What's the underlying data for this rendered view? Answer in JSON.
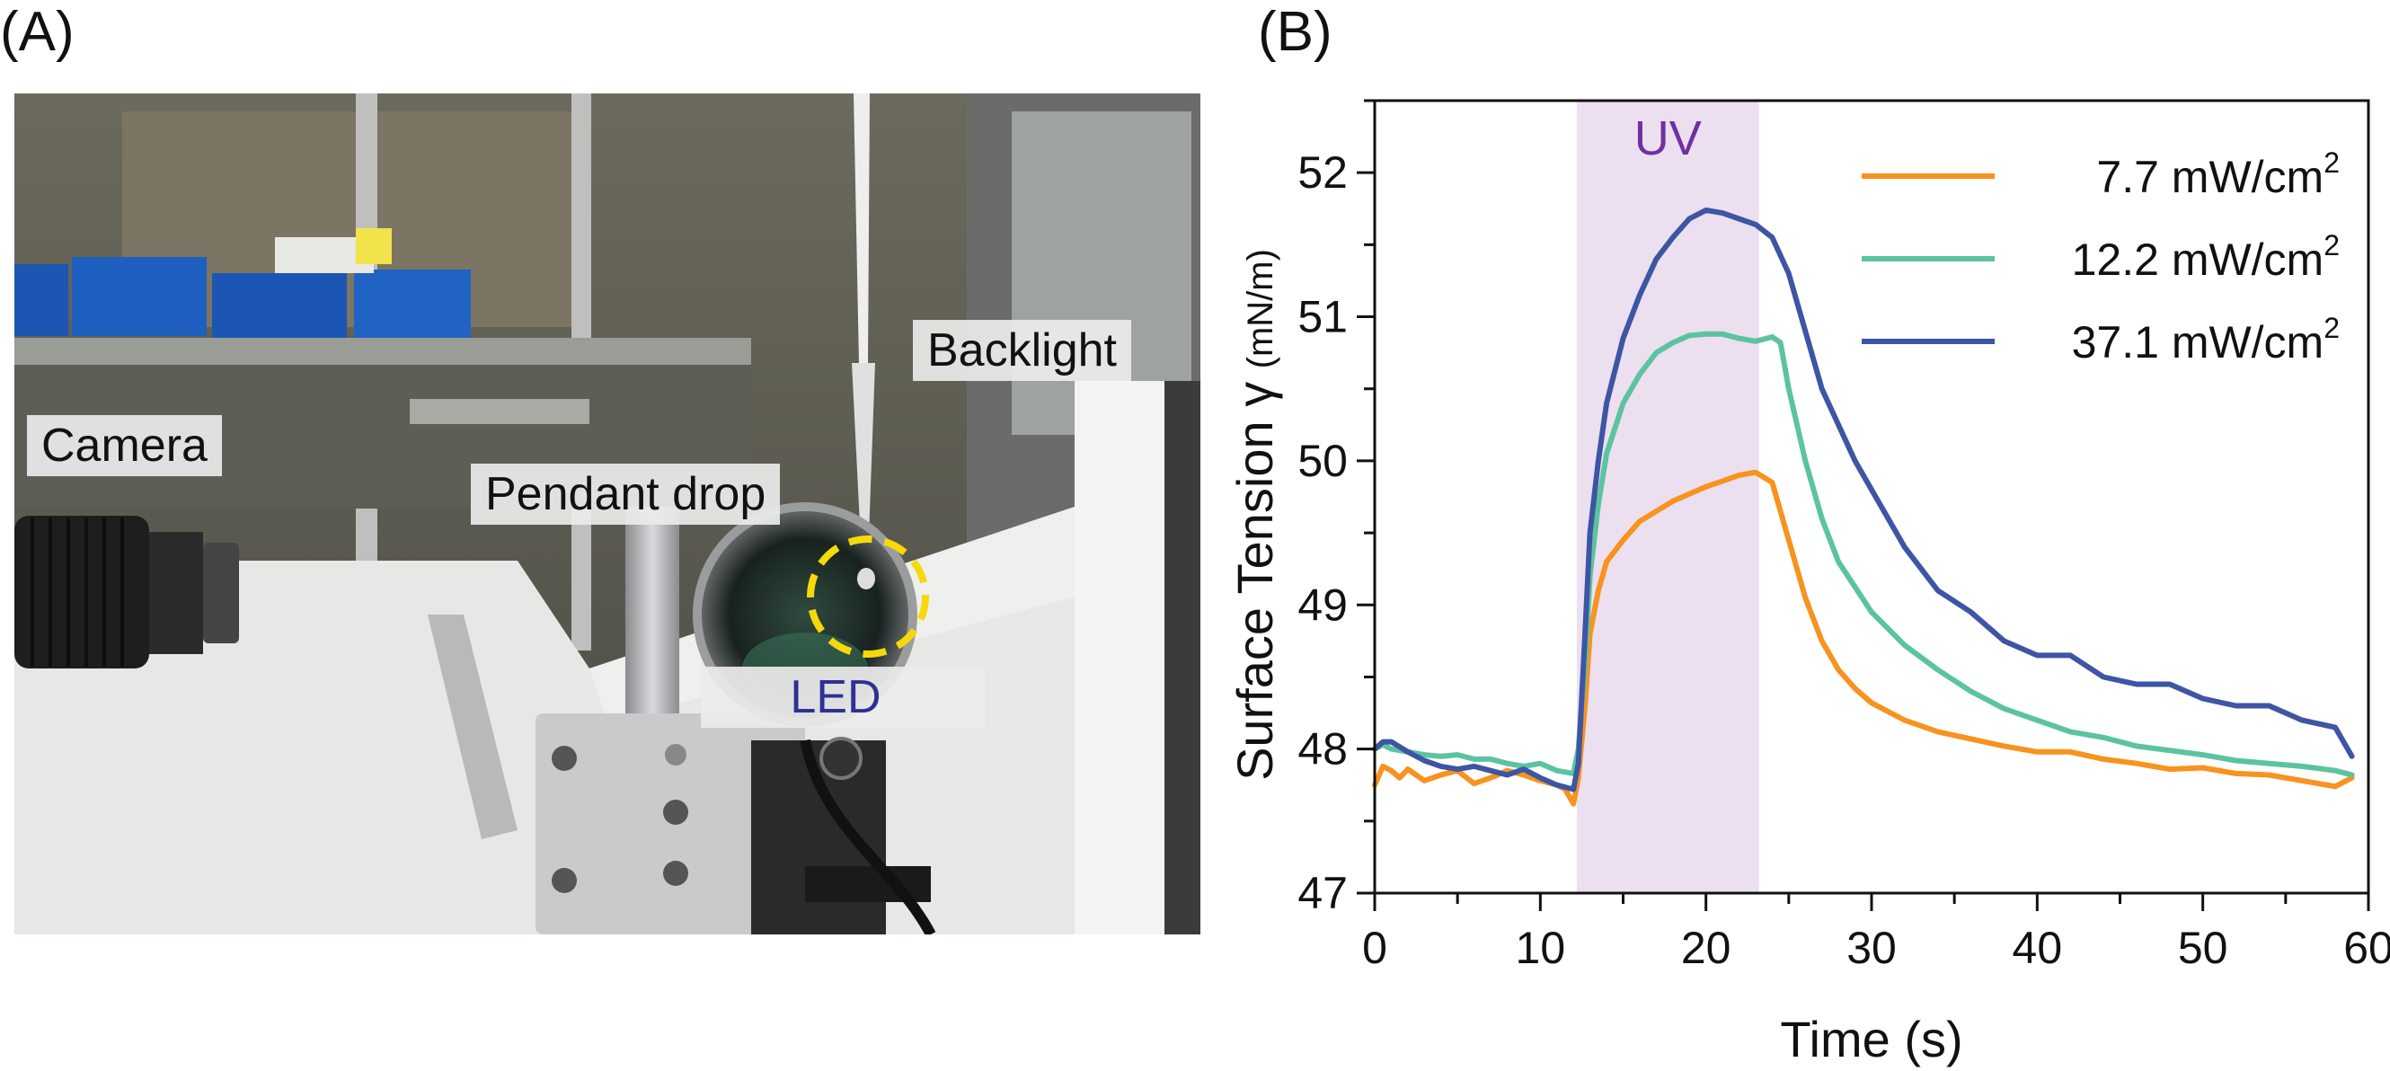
{
  "panels": {
    "a_label": "(A)",
    "b_label": "(B)"
  },
  "photo": {
    "labels": {
      "camera": "Camera",
      "pendant_drop": "Pendant drop",
      "backlight": "Backlight",
      "led": "LED"
    },
    "colors": {
      "led_text": "#2e3192",
      "drop_circle": "#f5d90a",
      "foam": "#e6e8e6",
      "shelf_bins": "#1c56b4"
    }
  },
  "chart_data": {
    "type": "line",
    "title": "",
    "xlabel": "Time (s)",
    "ylabel": "Surface Tension γ",
    "ylabel_unit": "(mN/m)",
    "xlim": [
      0,
      60
    ],
    "ylim": [
      47,
      52.5
    ],
    "xticks": [
      0,
      10,
      20,
      30,
      40,
      50,
      60
    ],
    "yticks": [
      47,
      48,
      49,
      50,
      51,
      52
    ],
    "x_minor_step": 5,
    "y_minor_step": 0.5,
    "grid": false,
    "legend_position": "top-right",
    "annotation": {
      "text": "UV",
      "x_start": 12.2,
      "x_end": 23.2,
      "color": "#7030a0",
      "shade": "#ecdff0"
    },
    "series": [
      {
        "name": "7.7 mW/cm",
        "superscript": "2",
        "color": "#f7931e",
        "x": [
          0,
          0.5,
          1,
          1.5,
          2,
          3,
          4,
          5,
          6,
          7,
          8,
          9,
          10,
          11,
          11.5,
          12,
          12.3,
          12.7,
          13,
          13.5,
          14,
          15,
          16,
          17,
          18,
          19,
          20,
          21,
          22,
          23,
          24,
          25,
          26,
          27,
          28,
          29,
          30,
          32,
          34,
          36,
          38,
          40,
          42,
          44,
          46,
          48,
          50,
          52,
          54,
          56,
          58,
          59
        ],
        "y": [
          47.75,
          47.88,
          47.85,
          47.8,
          47.86,
          47.78,
          47.82,
          47.85,
          47.76,
          47.8,
          47.85,
          47.82,
          47.78,
          47.75,
          47.72,
          47.62,
          47.8,
          48.3,
          48.8,
          49.1,
          49.3,
          49.45,
          49.58,
          49.65,
          49.72,
          49.77,
          49.82,
          49.86,
          49.9,
          49.92,
          49.85,
          49.45,
          49.05,
          48.75,
          48.55,
          48.42,
          48.32,
          48.2,
          48.12,
          48.07,
          48.02,
          47.98,
          47.98,
          47.93,
          47.9,
          47.86,
          47.87,
          47.83,
          47.82,
          47.78,
          47.74,
          47.8
        ]
      },
      {
        "name": "12.2 mW/cm",
        "superscript": "2",
        "color": "#5cc3a0",
        "x": [
          0,
          0.5,
          1,
          2,
          3,
          4,
          5,
          6,
          7,
          8,
          9,
          10,
          11,
          12,
          12.3,
          12.7,
          13,
          13.5,
          14,
          15,
          16,
          17,
          18,
          19,
          20,
          21,
          22,
          23,
          24,
          24.5,
          25,
          26,
          27,
          28,
          30,
          32,
          34,
          36,
          38,
          40,
          42,
          44,
          46,
          48,
          50,
          52,
          54,
          56,
          58,
          59
        ],
        "y": [
          48.0,
          48.03,
          48.0,
          47.98,
          47.96,
          47.95,
          47.96,
          47.93,
          47.93,
          47.9,
          47.88,
          47.9,
          47.85,
          47.83,
          48.0,
          48.6,
          49.2,
          49.7,
          50.05,
          50.4,
          50.6,
          50.75,
          50.82,
          50.87,
          50.88,
          50.88,
          50.85,
          50.83,
          50.86,
          50.82,
          50.5,
          50.0,
          49.6,
          49.3,
          48.95,
          48.72,
          48.55,
          48.4,
          48.28,
          48.2,
          48.12,
          48.08,
          48.02,
          47.99,
          47.96,
          47.92,
          47.9,
          47.88,
          47.85,
          47.82
        ]
      },
      {
        "name": "37.1 mW/cm",
        "superscript": "2",
        "color": "#3d55a4",
        "x": [
          0,
          0.5,
          1,
          2,
          3,
          4,
          5,
          6,
          7,
          8,
          9,
          10,
          11,
          12,
          12.3,
          12.7,
          13,
          13.5,
          14,
          15,
          16,
          17,
          18,
          19,
          20,
          21,
          22,
          23,
          24,
          25,
          26,
          27,
          28,
          29,
          30,
          32,
          34,
          36,
          38,
          40,
          42,
          44,
          46,
          48,
          50,
          52,
          54,
          56,
          58,
          59
        ],
        "y": [
          48.0,
          48.05,
          48.05,
          47.98,
          47.92,
          47.88,
          47.86,
          47.88,
          47.85,
          47.82,
          47.86,
          47.8,
          47.75,
          47.72,
          47.9,
          48.8,
          49.5,
          50.0,
          50.4,
          50.85,
          51.15,
          51.4,
          51.55,
          51.68,
          51.74,
          51.72,
          51.68,
          51.64,
          51.55,
          51.3,
          50.9,
          50.5,
          50.25,
          50.0,
          49.8,
          49.4,
          49.1,
          48.95,
          48.75,
          48.65,
          48.65,
          48.5,
          48.45,
          48.45,
          48.35,
          48.3,
          48.3,
          48.2,
          48.15,
          47.95
        ]
      }
    ]
  }
}
